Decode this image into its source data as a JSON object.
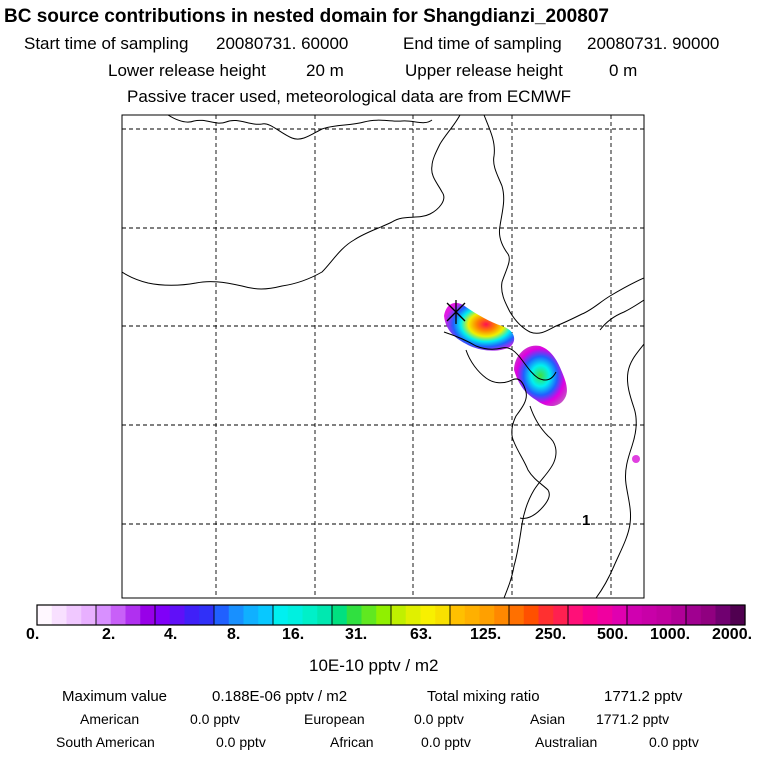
{
  "title": "BC  source contributions in nested domain for Shangdianzi_200807",
  "sampling": {
    "start_label": "Start time of sampling",
    "start_value": "20080731. 60000",
    "end_label": "End time of sampling",
    "end_value": "20080731. 90000"
  },
  "release": {
    "lower_label": "Lower release height",
    "lower_value": "20 m",
    "upper_label": "Upper release height",
    "upper_value": "0 m"
  },
  "note": "Passive tracer used, meteorological data are from ECMWF",
  "map": {
    "marker_label": "1",
    "plume_colors": {
      "magenta": "#e000e0",
      "blue": "#2060ff",
      "cyan": "#00f0f0",
      "green": "#40e040",
      "yellow": "#f0f000",
      "orange": "#ff8000",
      "red": "#ff1050",
      "purple": "#b000b0"
    }
  },
  "legend": {
    "labels": [
      "0.",
      "2.",
      "4.",
      "8.",
      "16.",
      "31.",
      "63.",
      "125.",
      "250.",
      "500.",
      "1000.",
      "2000."
    ],
    "unit": "10E-10 pptv / m2",
    "colors": [
      "#fff8ff",
      "#f8e0ff",
      "#f0c8ff",
      "#e8b0ff",
      "#d890ff",
      "#c860f8",
      "#b030f0",
      "#9800e8",
      "#8000f8",
      "#6010f8",
      "#4020f8",
      "#3030f8",
      "#2060ff",
      "#1890ff",
      "#10b0ff",
      "#08c8ff",
      "#00f0f0",
      "#00f0e0",
      "#00f0c8",
      "#00e8b0",
      "#00e080",
      "#30e040",
      "#60e820",
      "#90f000",
      "#c0f000",
      "#e0f000",
      "#f8f000",
      "#f8e000",
      "#ffc000",
      "#ffb000",
      "#ffa000",
      "#ff8800",
      "#ff7000",
      "#ff5000",
      "#ff3030",
      "#ff2050",
      "#ff1078",
      "#f80090",
      "#f000a0",
      "#e000b0",
      "#d000b0",
      "#c800a8",
      "#c000a0",
      "#b00098",
      "#a00090",
      "#900080",
      "#700070",
      "#500050"
    ]
  },
  "stats": {
    "max_label": "Maximum value",
    "max_value": "0.188E-06 pptv / m2",
    "total_label": "Total mixing ratio",
    "total_value": "1771.2 pptv"
  },
  "regions": [
    {
      "name": "American",
      "value": "0.0 pptv"
    },
    {
      "name": "European",
      "value": "0.0 pptv"
    },
    {
      "name": "Asian",
      "value": "1771.2 pptv"
    },
    {
      "name": "South American",
      "value": "0.0 pptv"
    },
    {
      "name": "African",
      "value": "0.0 pptv"
    },
    {
      "name": "Australian",
      "value": "0.0 pptv"
    }
  ]
}
